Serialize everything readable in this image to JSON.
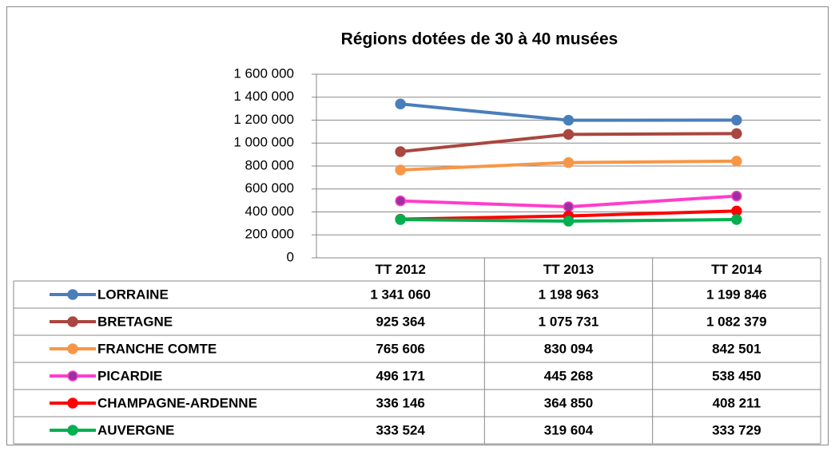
{
  "chart_data": {
    "type": "line",
    "title": "Régions dotées de 30 à 40 musées",
    "categories": [
      "TT 2012",
      "TT 2013",
      "TT 2014"
    ],
    "series": [
      {
        "name": "LORRAINE",
        "color": "#4a7ebb",
        "values": [
          1341060,
          1198963,
          1199846
        ],
        "value_labels": [
          "1 341 060",
          "1 198 963",
          "1 199 846"
        ]
      },
      {
        "name": "BRETAGNE",
        "color": "#a9463f",
        "values": [
          925364,
          1075731,
          1082379
        ],
        "value_labels": [
          "925 364",
          "1 075 731",
          "1 082 379"
        ]
      },
      {
        "name": "FRANCHE COMTE",
        "color": "#f79646",
        "values": [
          765606,
          830094,
          842501
        ],
        "value_labels": [
          "765 606",
          "830 094",
          "842 501"
        ]
      },
      {
        "name": "PICARDIE",
        "color": "#ff3dcc",
        "marker_color": "#9b30a0",
        "values": [
          496171,
          445268,
          538450
        ],
        "value_labels": [
          "496 171",
          "445 268",
          "538 450"
        ]
      },
      {
        "name": "CHAMPAGNE-ARDENNE",
        "color": "#ff0000",
        "values": [
          336146,
          364850,
          408211
        ],
        "value_labels": [
          "336 146",
          "364 850",
          "408 211"
        ]
      },
      {
        "name": "AUVERGNE",
        "color": "#00b050",
        "values": [
          333524,
          319604,
          333729
        ],
        "value_labels": [
          "333 524",
          "319 604",
          "333 729"
        ]
      }
    ],
    "ylim": [
      0,
      1600000
    ],
    "yticks": [
      0,
      {
        "value": 200000,
        "label": "200 000"
      },
      {
        "value": 400000,
        "label": "400 000"
      },
      {
        "value": 600000,
        "label": "600 000"
      },
      {
        "value": 800000,
        "label": "800 000"
      },
      {
        "value": 1000000,
        "label": "1 000 000"
      },
      {
        "value": 1200000,
        "label": "1 200 000"
      },
      {
        "value": 1400000,
        "label": "1 400 000"
      },
      {
        "value": 1600000,
        "label": "1 600 000"
      }
    ],
    "grid": true
  }
}
